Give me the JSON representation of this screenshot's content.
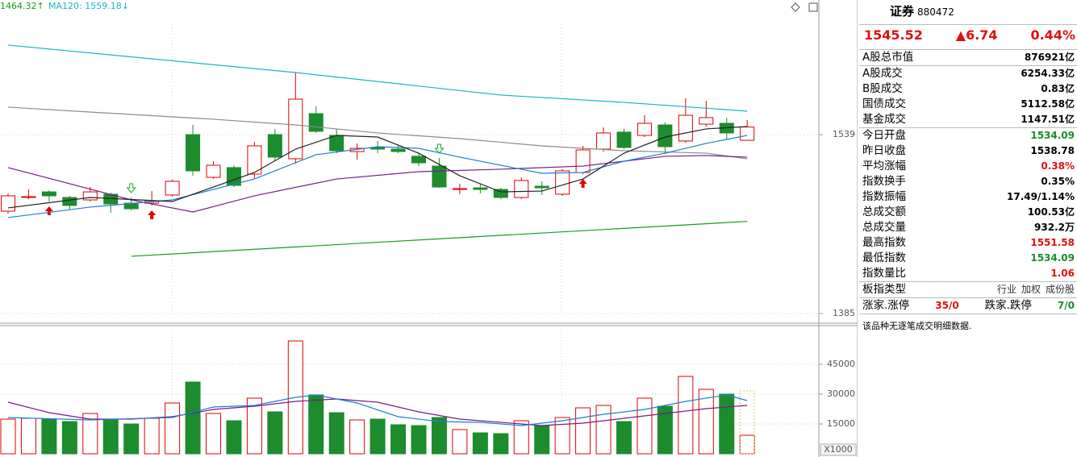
{
  "chart_data": [
    {
      "type": "candlestick",
      "legend": [
        {
          "label": "1464.32↑",
          "color": "#1a9a1a"
        },
        {
          "label": "MA120: 1559.18↓",
          "color": "#19b3c4"
        }
      ],
      "up_color": "#e00000",
      "down_color": "#1c8c2c",
      "open": [
        1473.1,
        1484.9,
        1489.7,
        1484.9,
        1482.8,
        1487.7,
        1480.0,
        1480.0,
        1487.0,
        1539.0,
        1502.2,
        1510.6,
        1505.0,
        1539.0,
        1518.2,
        1557.0,
        1538.3,
        1524.4,
        1527.9,
        1526.5,
        1520.3,
        1511.9,
        1491.8,
        1493.2,
        1491.8,
        1484.9,
        1494.6,
        1487.7,
        1506.4,
        1526.5,
        1541.1,
        1538.3,
        1547.3,
        1533.5,
        1548.0,
        1548.7,
        1534.09
      ],
      "high": [
        1488.4,
        1491.8,
        1491.1,
        1486.3,
        1493.9,
        1489.1,
        1484.9,
        1490.4,
        1500.2,
        1547.3,
        1516.1,
        1512.6,
        1532.8,
        1543.9,
        1592.4,
        1563.3,
        1543.9,
        1531.4,
        1533.5,
        1530.0,
        1523.0,
        1518.9,
        1496.7,
        1496.7,
        1493.2,
        1502.2,
        1498.8,
        1509.2,
        1529.3,
        1545.2,
        1543.9,
        1555.6,
        1549.4,
        1570.2,
        1568.1,
        1553.6,
        1551.58
      ],
      "low": [
        1471.0,
        1483.5,
        1481.4,
        1474.5,
        1481.4,
        1471.7,
        1473.8,
        1478.0,
        1485.6,
        1503.6,
        1500.8,
        1493.9,
        1501.5,
        1516.1,
        1514.0,
        1540.4,
        1523.0,
        1517.5,
        1523.0,
        1523.0,
        1511.9,
        1493.2,
        1487.7,
        1488.4,
        1483.5,
        1483.5,
        1487.0,
        1486.3,
        1505.0,
        1524.4,
        1526.5,
        1536.9,
        1522.4,
        1532.1,
        1545.9,
        1534.8,
        1534.09
      ],
      "close": [
        1486.3,
        1485.6,
        1486.3,
        1478.0,
        1489.7,
        1479.3,
        1475.2,
        1482.1,
        1498.8,
        1507.8,
        1512.6,
        1495.3,
        1529.3,
        1519.6,
        1569.5,
        1541.8,
        1525.1,
        1527.2,
        1526.5,
        1524.4,
        1514.7,
        1493.9,
        1492.5,
        1491.8,
        1484.9,
        1499.5,
        1493.2,
        1507.8,
        1525.8,
        1540.4,
        1527.9,
        1548.7,
        1528.6,
        1555.6,
        1553.6,
        1540.4,
        1545.52
      ],
      "series": [
        {
          "color": "#19b3c4",
          "x": [
            0,
            14,
            24,
            30,
            36
          ],
          "values": [
            1616.0,
            1592.4,
            1573.0,
            1566.7,
            1559.18
          ]
        },
        {
          "color": "#8c8c8c",
          "x": [
            0,
            6,
            10,
            14,
            18,
            22,
            26,
            30,
            34,
            36
          ],
          "values": [
            1562.6,
            1556.3,
            1552.2,
            1547.3,
            1540.4,
            1535.5,
            1529.3,
            1525.1,
            1523.0,
            1518.2
          ]
        },
        {
          "color": "#7a1a8a",
          "x": [
            0,
            6,
            9,
            12,
            16,
            20,
            24,
            28,
            32,
            34,
            36
          ],
          "values": [
            1510.6,
            1482.8,
            1472.4,
            1486.3,
            1500.8,
            1507.1,
            1509.2,
            1511.9,
            1520.3,
            1521.0,
            1519.6
          ]
        },
        {
          "color": "#1a9a1a",
          "x": [
            6,
            36
          ],
          "values": [
            1434.3,
            1464.32
          ]
        },
        {
          "color": "#1e7fd0",
          "x": [
            0,
            4,
            8,
            12,
            15,
            18,
            20,
            22,
            24,
            26,
            28,
            30,
            32,
            34,
            36
          ],
          "values": [
            1467.6,
            1476.6,
            1482.8,
            1500.8,
            1521.7,
            1528.6,
            1527.2,
            1519.6,
            1512.6,
            1505.7,
            1506.4,
            1516.1,
            1523.0,
            1531.4,
            1538.3
          ]
        },
        {
          "color": "#222222",
          "x": [
            0,
            4,
            8,
            10,
            12,
            14,
            16,
            18,
            20,
            22,
            24,
            26,
            28,
            30,
            32,
            34,
            36
          ],
          "values": [
            1475.9,
            1484.9,
            1481.4,
            1493.9,
            1506.4,
            1526.5,
            1538.3,
            1536.9,
            1523.0,
            1503.6,
            1489.7,
            1490.4,
            1500.8,
            1523.0,
            1536.9,
            1543.9,
            1545.9
          ]
        }
      ],
      "buy_signals": [
        2,
        7,
        28
      ],
      "sell_signals": [
        6,
        21
      ],
      "ylim": [
        1377.4,
        1654.8
      ],
      "yticks": [
        1539,
        1385
      ],
      "grid": true
    },
    {
      "type": "bar",
      "values": [
        17432,
        17838,
        17432,
        16216,
        20270,
        17432,
        15000,
        17838,
        25541,
        36081,
        20270,
        16622,
        27973,
        21081,
        56757,
        29595,
        20676,
        17027,
        17432,
        14595,
        14189,
        18243,
        12162,
        10541,
        10135,
        16622,
        14189,
        18243,
        23108,
        24324,
        16216,
        27973,
        23919,
        38919,
        32432,
        30000,
        9324
      ],
      "projected": 31622,
      "projected_color": "#e0c040",
      "series": [
        {
          "color": "#7a1a8a",
          "x": [
            0,
            2,
            4,
            6,
            8,
            10,
            12,
            14,
            16,
            18,
            20,
            22,
            24,
            26,
            28,
            30,
            32,
            34,
            36
          ],
          "values": [
            25946,
            20676,
            17432,
            17432,
            18649,
            22297,
            23919,
            26351,
            27568,
            25946,
            21081,
            17432,
            15811,
            14189,
            15405,
            17838,
            20270,
            22703,
            24324
          ]
        },
        {
          "color": "#1e7fd0",
          "x": [
            0,
            4,
            8,
            10,
            12,
            14,
            15,
            17,
            19,
            21,
            23,
            25,
            27,
            29,
            31,
            33,
            35,
            36
          ],
          "values": [
            18243,
            17027,
            18243,
            23514,
            24324,
            28378,
            29595,
            25541,
            18649,
            16216,
            15811,
            14189,
            16622,
            19865,
            22297,
            26351,
            29595,
            26757
          ]
        }
      ],
      "unit": "X1000",
      "ylim": [
        0,
        64459
      ],
      "yticks": [
        45000,
        30000,
        15000
      ],
      "grid": true
    }
  ],
  "panel": {
    "name": "证券",
    "code": "880472",
    "price": "1545.52",
    "change": "▲6.74",
    "pct": "0.44%",
    "rows": [
      {
        "label": "A股总市值",
        "value": "876921亿",
        "color": "#000"
      },
      {
        "label": "A股成交",
        "value": "6254.33亿",
        "color": "#000"
      },
      {
        "label": "B股成交",
        "value": "0.83亿",
        "color": "#000"
      },
      {
        "label": "国债成交",
        "value": "5112.58亿",
        "color": "#000"
      },
      {
        "label": "基金成交",
        "value": "1147.51亿",
        "color": "#000"
      },
      {
        "label": "今日开盘",
        "value": "1534.09",
        "color": "#1c8c2c"
      },
      {
        "label": "昨日收盘",
        "value": "1538.78",
        "color": "#000"
      },
      {
        "label": "平均涨幅",
        "value": "0.38%",
        "color": "#e01010"
      },
      {
        "label": "指数换手",
        "value": "0.35%",
        "color": "#000"
      },
      {
        "label": "指数振幅",
        "value": "17.49/1.14%",
        "color": "#000"
      },
      {
        "label": "总成交额",
        "value": "100.53亿",
        "color": "#000"
      },
      {
        "label": "总成交量",
        "value": "932.2万",
        "color": "#000"
      },
      {
        "label": "最高指数",
        "value": "1551.58",
        "color": "#e01010"
      },
      {
        "label": "最低指数",
        "value": "1534.09",
        "color": "#1c8c2c"
      },
      {
        "label": "指数量比",
        "value": "1.06",
        "color": "#e01010"
      }
    ],
    "type_label": "板指类型",
    "type_options": [
      "行业",
      "加权",
      "成份股"
    ],
    "breadth": {
      "up_label": "涨家.涨停",
      "up": "35/0",
      "down_label": "跌家.跌停",
      "down": "7/0"
    },
    "note": "该品种无逐笔成交明细数据."
  }
}
